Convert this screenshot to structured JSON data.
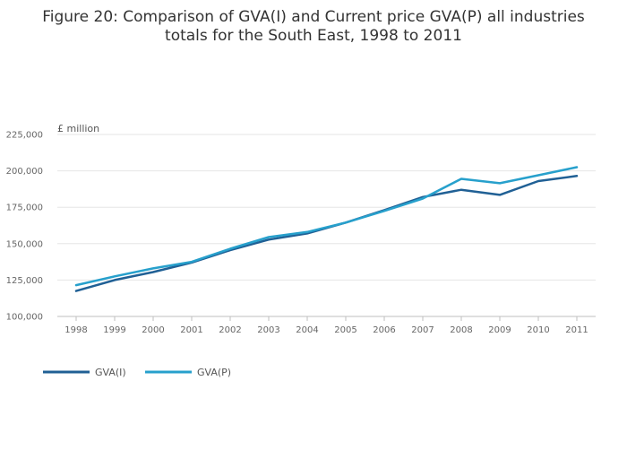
{
  "chart_data": {
    "type": "line",
    "title_lines": [
      "Figure 20: Comparison of GVA(I) and Current price GVA(P) all industries",
      "totals for the South East, 1998 to 2011"
    ],
    "unit_label": "£ million",
    "x": [
      "1998",
      "1999",
      "2000",
      "2001",
      "2002",
      "2003",
      "2004",
      "2005",
      "2006",
      "2007",
      "2008",
      "2009",
      "2010",
      "2011"
    ],
    "ylim": [
      100000,
      225000
    ],
    "y_ticks": [
      100000,
      125000,
      150000,
      175000,
      200000,
      225000
    ],
    "y_tick_labels": [
      "100,000",
      "125,000",
      "150,000",
      "175,000",
      "200,000",
      "225,000"
    ],
    "grid": true,
    "legend_position": "bottom-left",
    "series": [
      {
        "name": "GVA(I)",
        "color": "#206095",
        "values": [
          117500,
          125000,
          130500,
          137000,
          145500,
          152800,
          157000,
          164500,
          173000,
          182000,
          187000,
          183500,
          193000,
          196500
        ]
      },
      {
        "name": "GVA(P)",
        "color": "#27a0cc",
        "values": [
          121500,
          127500,
          133000,
          137500,
          146500,
          154500,
          158000,
          164500,
          172500,
          181000,
          194500,
          191500,
          197000,
          202500
        ]
      }
    ]
  }
}
